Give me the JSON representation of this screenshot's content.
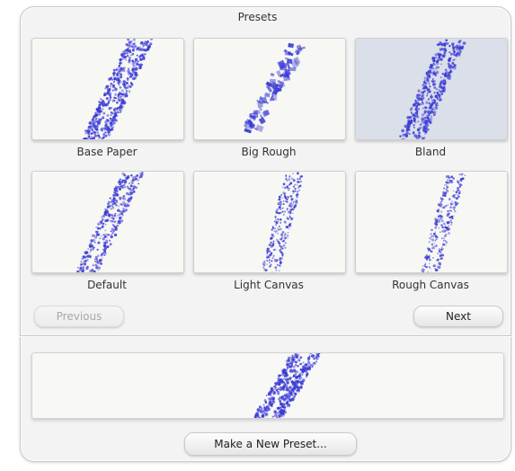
{
  "panel": {
    "title": "Presets",
    "stroke_color": "#3b3bd6",
    "selected_background": "#dadfe9"
  },
  "presets": [
    {
      "label": "Base Paper",
      "selected": false
    },
    {
      "label": "Big Rough",
      "selected": false
    },
    {
      "label": "Bland",
      "selected": true
    },
    {
      "label": "Default",
      "selected": false
    },
    {
      "label": "Light Canvas",
      "selected": false
    },
    {
      "label": "Rough Canvas",
      "selected": false
    }
  ],
  "navigation": {
    "previous_label": "Previous",
    "previous_enabled": false,
    "next_label": "Next",
    "next_enabled": true
  },
  "preview": {
    "icon": "brush-stroke-preview"
  },
  "actions": {
    "make_new_preset_label": "Make a New Preset..."
  }
}
